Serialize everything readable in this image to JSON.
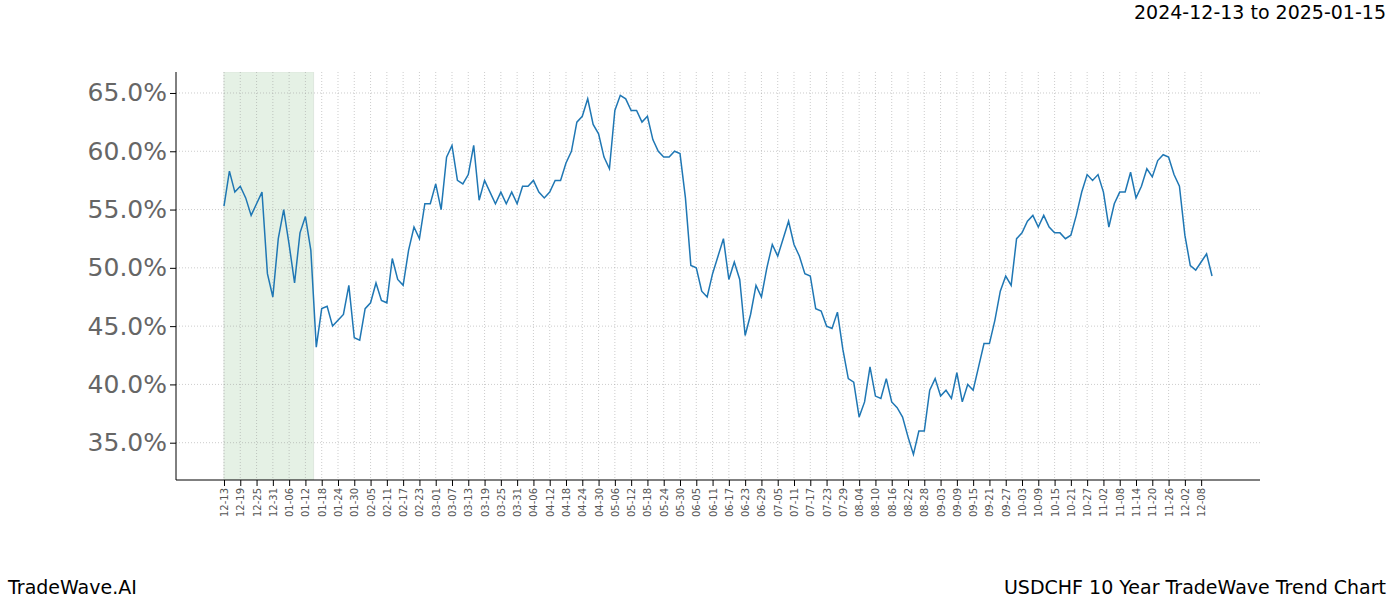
{
  "chart_data": {
    "type": "line",
    "title": "USDCHF 10 Year TradeWave Trend Chart",
    "subtitle": "2024-12-13 to 2025-01-15",
    "brand": "TradeWave.AI",
    "color": "#1f77b4",
    "grid": true,
    "shaded_x": [
      0,
      16.5
    ],
    "ylim": [
      31.8,
      66.8
    ],
    "yticks": [
      {
        "value": 35,
        "label": "35.0%"
      },
      {
        "value": 40,
        "label": "40.0%"
      },
      {
        "value": 45,
        "label": "45.0%"
      },
      {
        "value": 50,
        "label": "50.0%"
      },
      {
        "value": 55,
        "label": "55.0%"
      },
      {
        "value": 60,
        "label": "60.0%"
      },
      {
        "value": 65,
        "label": "65.0%"
      }
    ],
    "categories": [
      "12-13",
      null,
      null,
      "12-19",
      null,
      null,
      "12-25",
      null,
      null,
      "12-31",
      null,
      null,
      "01-06",
      null,
      null,
      "01-12",
      null,
      null,
      "01-18",
      null,
      null,
      "01-24",
      null,
      null,
      "01-30",
      null,
      null,
      "02-05",
      null,
      null,
      "02-11",
      null,
      null,
      "02-17",
      null,
      null,
      "02-23",
      null,
      null,
      "03-01",
      null,
      null,
      "03-07",
      null,
      null,
      "03-13",
      null,
      null,
      "03-19",
      null,
      null,
      "03-25",
      null,
      null,
      "03-31",
      null,
      null,
      "04-06",
      null,
      null,
      "04-12",
      null,
      null,
      "04-18",
      null,
      null,
      "04-24",
      null,
      null,
      "04-30",
      null,
      null,
      "05-06",
      null,
      null,
      "05-12",
      null,
      null,
      "05-18",
      null,
      null,
      "05-24",
      null,
      null,
      "05-30",
      null,
      null,
      "06-05",
      null,
      null,
      "06-11",
      null,
      null,
      "06-17",
      null,
      null,
      "06-23",
      null,
      null,
      "06-29",
      null,
      null,
      "07-05",
      null,
      null,
      "07-11",
      null,
      null,
      "07-17",
      null,
      null,
      "07-23",
      null,
      null,
      "07-29",
      null,
      null,
      "08-04",
      null,
      null,
      "08-10",
      null,
      null,
      "08-16",
      null,
      null,
      "08-22",
      null,
      null,
      "08-28",
      null,
      null,
      "09-03",
      null,
      null,
      "09-09",
      null,
      null,
      "09-15",
      null,
      null,
      "09-21",
      null,
      null,
      "09-27",
      null,
      null,
      "10-03",
      null,
      null,
      "10-09",
      null,
      null,
      "10-15",
      null,
      null,
      "10-21",
      null,
      null,
      "10-27",
      null,
      null,
      "11-02",
      null,
      null,
      "11-08",
      null,
      null,
      "11-14",
      null,
      null,
      "11-20",
      null,
      null,
      "11-26",
      null,
      null,
      "12-02",
      null,
      null,
      "12-08",
      null,
      null
    ],
    "values": [
      55.3,
      58.3,
      56.5,
      57,
      56,
      54.5,
      55.5,
      56.5,
      49.5,
      47.5,
      52.5,
      55,
      52,
      48.7,
      53,
      54.4,
      51.5,
      43.2,
      46.5,
      46.7,
      45,
      45.5,
      46,
      48.5,
      44,
      43.8,
      46.5,
      47,
      48.7,
      47.2,
      47,
      50.8,
      49,
      48.5,
      51.5,
      53.5,
      52.5,
      55.5,
      55.5,
      57.2,
      55,
      59.5,
      60.5,
      57.5,
      57.2,
      58,
      60.5,
      55.8,
      57.5,
      56.5,
      55.5,
      56.5,
      55.5,
      56.5,
      55.5,
      57,
      57,
      57.5,
      56.5,
      56,
      56.5,
      57.5,
      57.5,
      59,
      60,
      62.5,
      63,
      64.5,
      62.3,
      61.5,
      59.5,
      58.5,
      63.5,
      64.8,
      64.5,
      63.5,
      63.5,
      62.5,
      63,
      61,
      60,
      59.5,
      59.5,
      60,
      59.8,
      56,
      50.2,
      50,
      48,
      47.5,
      49.5,
      51,
      52.5,
      49,
      50.5,
      49,
      44.2,
      46,
      48.5,
      47.5,
      50,
      52,
      51,
      52.5,
      54,
      52,
      51,
      49.5,
      49.3,
      46.5,
      46.3,
      45,
      44.8,
      46.2,
      43,
      40.5,
      40.2,
      37.2,
      38.5,
      41.5,
      39,
      38.8,
      40.5,
      38.5,
      38,
      37.2,
      35.5,
      34,
      36,
      36,
      39.5,
      40.5,
      39,
      39.5,
      38.8,
      41,
      38.5,
      40,
      39.5,
      41.5,
      43.5,
      43.5,
      45.5,
      48,
      49.3,
      48.5,
      52.5,
      53,
      54,
      54.5,
      53.5,
      54.5,
      53.5,
      53,
      53,
      52.5,
      52.8,
      54.5,
      56.5,
      58,
      57.5,
      58,
      56.5,
      53.5,
      55.5,
      56.5,
      56.5,
      58.2,
      56,
      57,
      58.5,
      57.8,
      59.2,
      59.7,
      59.5,
      58,
      57,
      52.8,
      50.2,
      49.8,
      50.5,
      51.2,
      49.3
    ]
  }
}
